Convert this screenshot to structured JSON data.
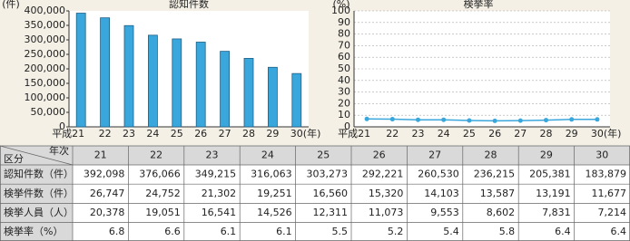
{
  "chart_data": [
    {
      "type": "bar",
      "title": "認知件数",
      "y_unit": "(件)",
      "x_unit": "(年)",
      "categories": [
        "平成21",
        "22",
        "23",
        "24",
        "25",
        "26",
        "27",
        "28",
        "29",
        "30"
      ],
      "values": [
        392098,
        376066,
        349215,
        316063,
        303273,
        292221,
        260530,
        236215,
        205381,
        183879
      ],
      "color": "#3aa7dc",
      "ylim": [
        0,
        400000
      ],
      "yticks": [
        0,
        {
          "value": 50000,
          "label": "50,000"
        },
        {
          "value": 100000,
          "label": "100,000"
        },
        {
          "value": 150000,
          "label": "150,000"
        },
        {
          "value": 200000,
          "label": "200,000"
        },
        {
          "value": 250000,
          "label": "250,000"
        },
        {
          "value": 300000,
          "label": "300,000"
        },
        {
          "value": 350000,
          "label": "350,000"
        },
        {
          "value": 400000,
          "label": "400,000"
        }
      ],
      "grid": false
    },
    {
      "type": "line",
      "title": "検挙率",
      "y_unit": "(%)",
      "x_unit": "(年)",
      "categories": [
        "平成21",
        "22",
        "23",
        "24",
        "25",
        "26",
        "27",
        "28",
        "29",
        "30"
      ],
      "values": [
        6.8,
        6.6,
        6.1,
        6.1,
        5.5,
        5.2,
        5.4,
        5.8,
        6.4,
        6.4
      ],
      "color": "#3aa7dc",
      "ylim": [
        0,
        100
      ],
      "yticks": [
        0,
        10,
        20,
        30,
        40,
        50,
        60,
        70,
        80,
        90,
        100
      ],
      "grid": true
    }
  ],
  "table": {
    "corner_col": "区分",
    "corner_row": "年次",
    "years": [
      "21",
      "22",
      "23",
      "24",
      "25",
      "26",
      "27",
      "28",
      "29",
      "30"
    ],
    "rows": [
      {
        "label": "認知件数（件）",
        "cells": [
          "392,098",
          "376,066",
          "349,215",
          "316,063",
          "303,273",
          "292,221",
          "260,530",
          "236,215",
          "205,381",
          "183,879"
        ]
      },
      {
        "label": "検挙件数（件）",
        "cells": [
          "26,747",
          "24,752",
          "21,302",
          "19,251",
          "16,560",
          "15,320",
          "14,103",
          "13,587",
          "13,191",
          "11,677"
        ]
      },
      {
        "label": "検挙人員（人）",
        "cells": [
          "20,378",
          "19,051",
          "16,541",
          "14,526",
          "12,311",
          "11,073",
          "9,553",
          "8,602",
          "7,831",
          "7,214"
        ]
      },
      {
        "label": "検挙率（%）",
        "cells": [
          "6.8",
          "6.6",
          "6.1",
          "6.1",
          "5.5",
          "5.2",
          "5.4",
          "5.8",
          "6.4",
          "6.4"
        ]
      }
    ]
  }
}
